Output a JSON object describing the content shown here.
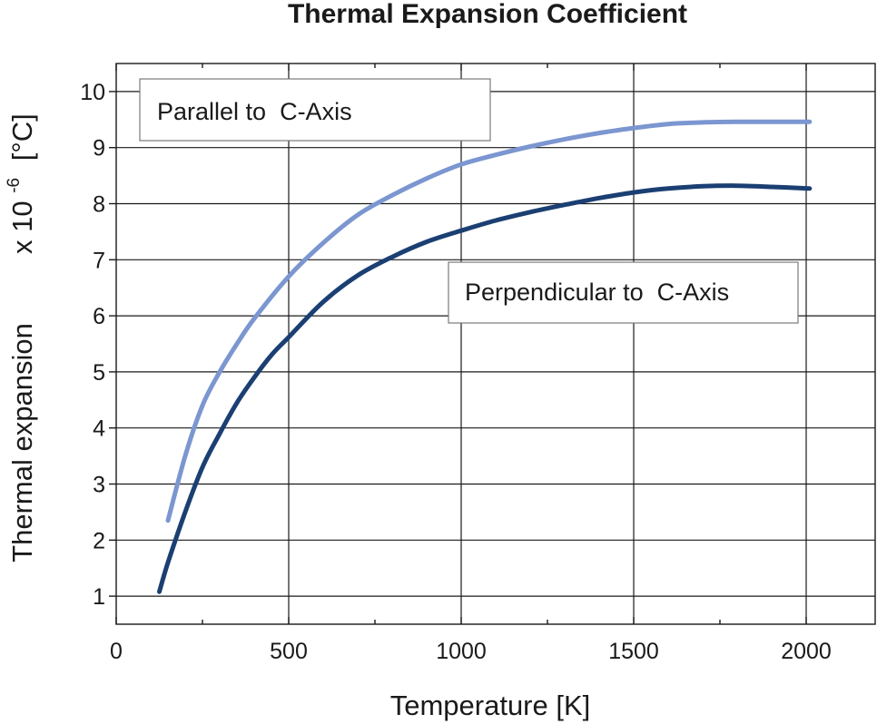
{
  "chart_data": {
    "type": "line",
    "title": "Thermal Expansion Coefficient",
    "xlabel": "Temperature [K]",
    "ylabel": "Thermal expansion",
    "ylabel_unit_prefix": "x 10",
    "ylabel_unit_exponent": "-6",
    "ylabel_unit_suffix": "[°C]",
    "xlim": [
      0,
      2200
    ],
    "ylim": [
      0.5,
      10.5
    ],
    "xticks": [
      0,
      500,
      1000,
      1500,
      2000
    ],
    "yticks": [
      1,
      2,
      3,
      4,
      5,
      6,
      7,
      8,
      9,
      10
    ],
    "grid": true,
    "series": [
      {
        "name": "Parallel to  C-Axis",
        "color": "#7b96d0",
        "x": [
          150,
          200,
          250,
          300,
          350,
          400,
          500,
          600,
          700,
          800,
          900,
          1000,
          1100,
          1200,
          1300,
          1400,
          1500,
          1600,
          1700,
          1800,
          1900,
          2010
        ],
        "y": [
          2.35,
          3.5,
          4.4,
          5.0,
          5.5,
          5.95,
          6.7,
          7.3,
          7.8,
          8.15,
          8.45,
          8.7,
          8.87,
          9.02,
          9.15,
          9.26,
          9.35,
          9.42,
          9.45,
          9.46,
          9.46,
          9.46
        ]
      },
      {
        "name": "Perpendicular to  C-Axis",
        "color": "#1b3f72",
        "x": [
          125,
          150,
          200,
          250,
          300,
          350,
          400,
          450,
          500,
          600,
          700,
          800,
          900,
          1000,
          1100,
          1200,
          1300,
          1400,
          1500,
          1600,
          1700,
          1800,
          1900,
          2010
        ],
        "y": [
          1.08,
          1.6,
          2.5,
          3.3,
          3.9,
          4.45,
          4.9,
          5.3,
          5.62,
          6.25,
          6.72,
          7.05,
          7.32,
          7.52,
          7.7,
          7.85,
          7.98,
          8.1,
          8.2,
          8.27,
          8.31,
          8.32,
          8.3,
          8.27
        ]
      }
    ],
    "annotations": [
      "Parallel to  C-Axis",
      "Perpendicular to  C-Axis"
    ]
  }
}
